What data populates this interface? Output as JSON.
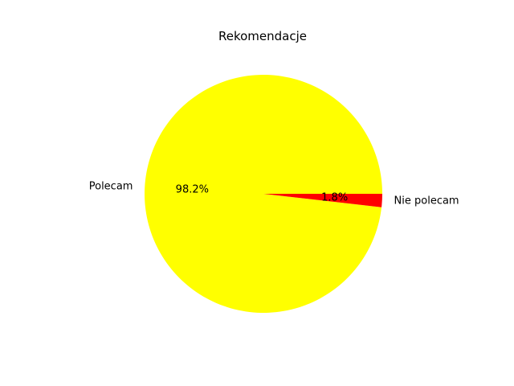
{
  "chart_data": {
    "type": "pie",
    "title": "Rekomendacje",
    "slices": [
      {
        "label": "Polecam",
        "value": 98.2,
        "pct_label": "98.2%",
        "color": "#ffff00"
      },
      {
        "label": "Nie polecam",
        "value": 1.8,
        "pct_label": "1.8%",
        "color": "#ff0000"
      }
    ]
  }
}
